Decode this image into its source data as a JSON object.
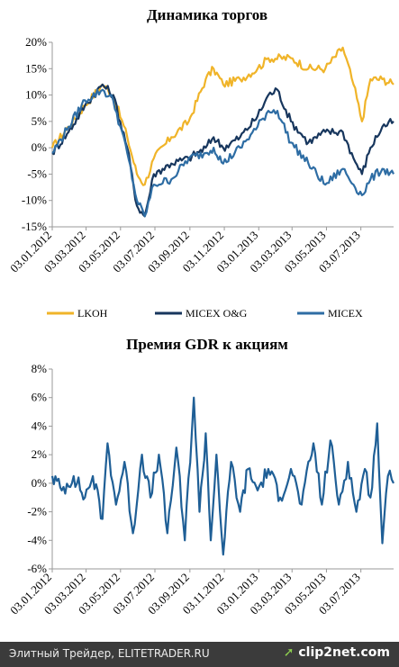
{
  "chart_data": [
    {
      "type": "line",
      "title": "Динамика торгов",
      "y_ticks": [
        "20%",
        "15%",
        "10%",
        "5%",
        "0%",
        "-5%",
        "-10%",
        "-15%"
      ],
      "ylim": [
        -15,
        20
      ],
      "x_ticks": [
        "03.01.2012",
        "03.03.2012",
        "03.05.2012",
        "03.07.2012",
        "03.09.2012",
        "03.11.2012",
        "03.01.2013",
        "03.03.2013",
        "03.05.2013",
        "03.07.2013"
      ],
      "x_range": [
        "2012-01-03",
        "2013-08-30"
      ],
      "grid": false,
      "legend_position": "bottom",
      "series": [
        {
          "name": "LKOH",
          "color": "#f0b429",
          "points": [
            [
              "2012-01-03",
              0
            ],
            [
              "2012-02-01",
              4
            ],
            [
              "2012-03-01",
              8
            ],
            [
              "2012-04-01",
              12
            ],
            [
              "2012-04-20",
              10
            ],
            [
              "2012-05-15",
              2
            ],
            [
              "2012-06-01",
              -5
            ],
            [
              "2012-06-15",
              -7
            ],
            [
              "2012-07-01",
              -2
            ],
            [
              "2012-08-01",
              2
            ],
            [
              "2012-09-01",
              5
            ],
            [
              "2012-10-01",
              13
            ],
            [
              "2012-10-15",
              15
            ],
            [
              "2012-11-01",
              12
            ],
            [
              "2012-12-01",
              13
            ],
            [
              "2013-01-01",
              15
            ],
            [
              "2013-01-20",
              17
            ],
            [
              "2013-03-01",
              17
            ],
            [
              "2013-04-01",
              15
            ],
            [
              "2013-05-01",
              15
            ],
            [
              "2013-06-01",
              19
            ],
            [
              "2013-06-20",
              12
            ],
            [
              "2013-07-05",
              5
            ],
            [
              "2013-07-20",
              13
            ],
            [
              "2013-08-10",
              13
            ],
            [
              "2013-08-30",
              12
            ]
          ]
        },
        {
          "name": "MICEX O&G",
          "color": "#17365d",
          "points": [
            [
              "2012-01-03",
              -1
            ],
            [
              "2012-02-01",
              3
            ],
            [
              "2012-03-01",
              8
            ],
            [
              "2012-04-01",
              12
            ],
            [
              "2012-04-20",
              10
            ],
            [
              "2012-05-15",
              0
            ],
            [
              "2012-06-01",
              -11
            ],
            [
              "2012-06-15",
              -13
            ],
            [
              "2012-07-01",
              -5
            ],
            [
              "2012-08-01",
              -3
            ],
            [
              "2012-09-01",
              -2
            ],
            [
              "2012-10-01",
              0
            ],
            [
              "2012-10-15",
              2
            ],
            [
              "2012-11-01",
              0
            ],
            [
              "2012-12-01",
              2
            ],
            [
              "2013-01-01",
              6
            ],
            [
              "2013-01-20",
              10
            ],
            [
              "2013-02-05",
              11
            ],
            [
              "2013-03-01",
              5
            ],
            [
              "2013-04-01",
              1
            ],
            [
              "2013-05-01",
              3
            ],
            [
              "2013-06-01",
              3
            ],
            [
              "2013-06-20",
              -2
            ],
            [
              "2013-07-05",
              -5
            ],
            [
              "2013-07-20",
              0
            ],
            [
              "2013-08-10",
              4
            ],
            [
              "2013-08-30",
              5
            ]
          ]
        },
        {
          "name": "MICEX",
          "color": "#2e6da4",
          "points": [
            [
              "2012-01-03",
              -1
            ],
            [
              "2012-02-01",
              4
            ],
            [
              "2012-03-01",
              9
            ],
            [
              "2012-04-01",
              11
            ],
            [
              "2012-04-20",
              9
            ],
            [
              "2012-05-15",
              -1
            ],
            [
              "2012-06-01",
              -10
            ],
            [
              "2012-06-15",
              -13
            ],
            [
              "2012-07-01",
              -7
            ],
            [
              "2012-08-01",
              -6
            ],
            [
              "2012-09-01",
              -2
            ],
            [
              "2012-10-01",
              -1
            ],
            [
              "2012-10-15",
              0
            ],
            [
              "2012-11-01",
              -3
            ],
            [
              "2012-12-01",
              0
            ],
            [
              "2013-01-01",
              4
            ],
            [
              "2013-01-20",
              7
            ],
            [
              "2013-02-05",
              7
            ],
            [
              "2013-03-01",
              1
            ],
            [
              "2013-04-01",
              -3
            ],
            [
              "2013-05-01",
              -7
            ],
            [
              "2013-06-01",
              -4
            ],
            [
              "2013-06-20",
              -7
            ],
            [
              "2013-07-05",
              -9
            ],
            [
              "2013-07-20",
              -6
            ],
            [
              "2013-08-10",
              -4
            ],
            [
              "2013-08-30",
              -5
            ]
          ]
        }
      ]
    },
    {
      "type": "line",
      "title": "Премия GDR к акциям",
      "y_ticks": [
        "8%",
        "6%",
        "4%",
        "2%",
        "0%",
        "-2%",
        "-4%",
        "-6%"
      ],
      "ylim": [
        -6,
        8
      ],
      "x_ticks": [
        "03.01.2012",
        "03.03.2012",
        "03.05.2012",
        "03.07.2012",
        "03.09.2012",
        "03.11.2012",
        "03.01.2013",
        "03.03.2013",
        "03.05.2013",
        "03.07.2013"
      ],
      "x_range": [
        "2012-01-03",
        "2013-08-30"
      ],
      "grid": false,
      "series": [
        {
          "color": "#1f5f96",
          "points": [
            [
              "2012-01-03",
              0.5
            ],
            [
              "2012-01-20",
              -0.5
            ],
            [
              "2012-02-10",
              0.5
            ],
            [
              "2012-03-01",
              -1
            ],
            [
              "2012-03-15",
              0.5
            ],
            [
              "2012-04-01",
              -2.5
            ],
            [
              "2012-04-10",
              2.8
            ],
            [
              "2012-04-25",
              -1.5
            ],
            [
              "2012-05-10",
              1.5
            ],
            [
              "2012-05-25",
              -3.5
            ],
            [
              "2012-06-10",
              2
            ],
            [
              "2012-06-25",
              -1
            ],
            [
              "2012-07-10",
              2
            ],
            [
              "2012-07-25",
              -3.5
            ],
            [
              "2012-08-10",
              2.5
            ],
            [
              "2012-08-25",
              -4
            ],
            [
              "2012-09-10",
              6
            ],
            [
              "2012-09-20",
              -2
            ],
            [
              "2012-10-01",
              3.5
            ],
            [
              "2012-10-10",
              -4
            ],
            [
              "2012-10-20",
              2
            ],
            [
              "2012-11-01",
              -5
            ],
            [
              "2012-11-15",
              1.5
            ],
            [
              "2012-12-01",
              -2
            ],
            [
              "2012-12-15",
              1
            ],
            [
              "2013-01-01",
              -0.5
            ],
            [
              "2013-01-20",
              1
            ],
            [
              "2013-02-10",
              -1
            ],
            [
              "2013-03-01",
              1
            ],
            [
              "2013-03-20",
              -1.5
            ],
            [
              "2013-04-10",
              2.8
            ],
            [
              "2013-04-25",
              -1.5
            ],
            [
              "2013-05-10",
              3
            ],
            [
              "2013-05-25",
              -1.5
            ],
            [
              "2013-06-10",
              1.5
            ],
            [
              "2013-06-25",
              -2
            ],
            [
              "2013-07-10",
              1
            ],
            [
              "2013-07-20",
              -1
            ],
            [
              "2013-08-01",
              4.2
            ],
            [
              "2013-08-10",
              -4.2
            ],
            [
              "2013-08-20",
              0.5
            ],
            [
              "2013-08-30",
              0
            ]
          ]
        }
      ]
    }
  ],
  "footer": {
    "source": "Элитный Трейдер, ELITETRADER.RU",
    "brand": "clip2net.com"
  }
}
